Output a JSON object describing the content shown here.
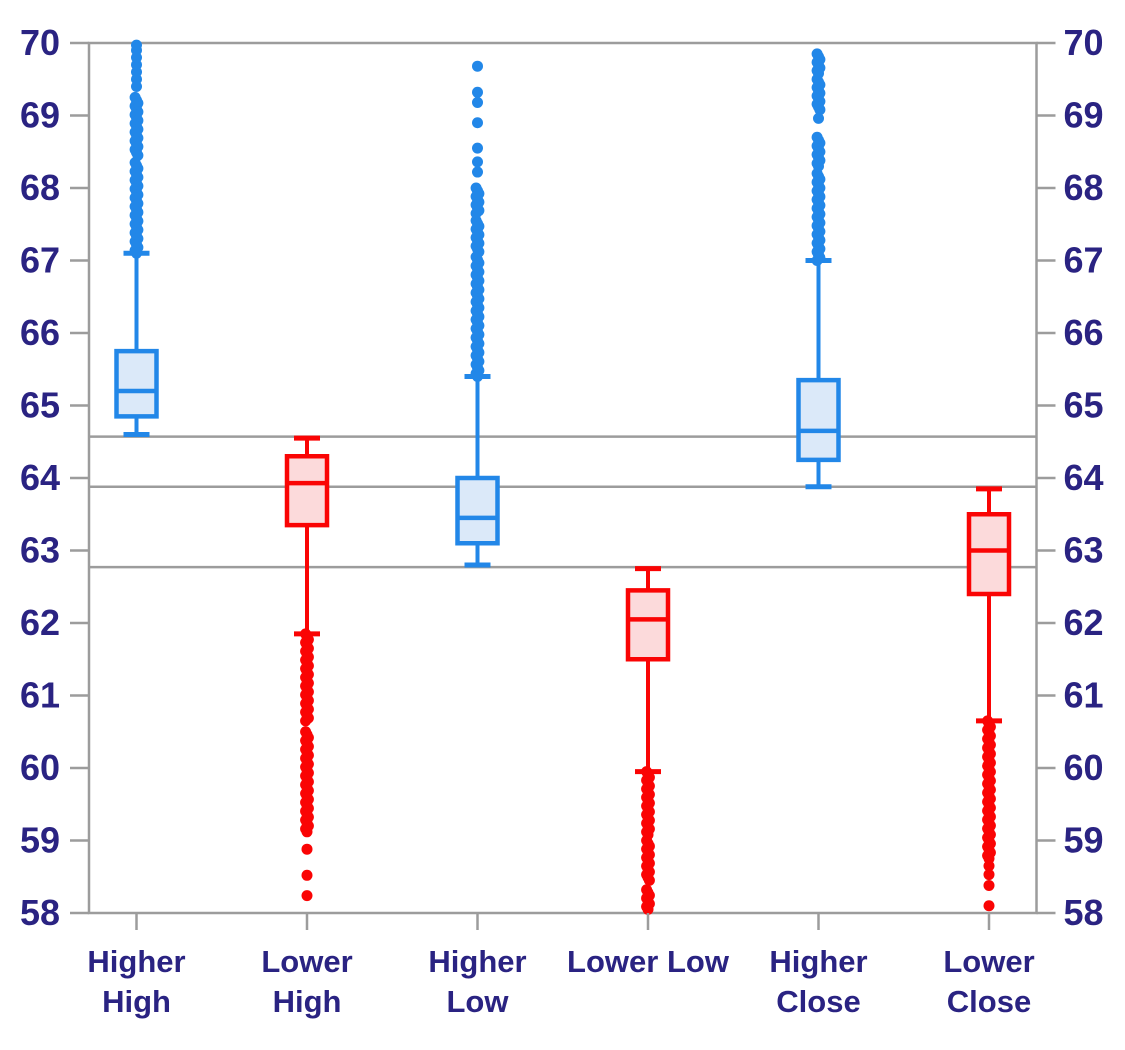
{
  "chart_data": {
    "type": "boxplot",
    "title": "",
    "xlabel": "",
    "ylabel": "",
    "y_axis": {
      "min": 58,
      "max": 70,
      "tick_step": 1,
      "ticks": [
        70,
        69,
        68,
        67,
        66,
        65,
        64,
        63,
        62,
        61,
        60,
        59,
        58
      ],
      "sides": [
        "left",
        "right"
      ]
    },
    "reference_lines": [
      64.57,
      63.88,
      62.77
    ],
    "grid": "horizontal-reference-only",
    "legend": "none",
    "categories": [
      {
        "label_lines": [
          "Higher",
          "High"
        ]
      },
      {
        "label_lines": [
          "Lower",
          "High"
        ]
      },
      {
        "label_lines": [
          "Higher",
          "Low"
        ]
      },
      {
        "label_lines": [
          "Lower Low"
        ]
      },
      {
        "label_lines": [
          "Higher",
          "Close"
        ]
      },
      {
        "label_lines": [
          "Lower",
          "Close"
        ]
      }
    ],
    "boxes": [
      {
        "name": "Higher High",
        "series": "higher",
        "whisker_low": 64.6,
        "q1": 64.85,
        "median": 65.2,
        "q3": 65.75,
        "whisker_high": 67.1,
        "outlier_side": "high",
        "outlier_runs": [
          [
            67.1,
            68.35
          ],
          [
            68.45,
            69.25
          ]
        ],
        "outlier_points": [
          69.4,
          69.5,
          69.6,
          69.7,
          69.8,
          69.9,
          69.97
        ]
      },
      {
        "name": "Lower High",
        "series": "lower",
        "whisker_low": 61.85,
        "q1": 63.35,
        "median": 63.93,
        "q3": 64.3,
        "whisker_high": 64.55,
        "outlier_side": "low",
        "outlier_runs": [
          [
            60.65,
            61.85
          ],
          [
            59.12,
            60.5
          ]
        ],
        "outlier_points": [
          58.88,
          58.52,
          58.24
        ]
      },
      {
        "name": "Higher Low",
        "series": "higher",
        "whisker_low": 62.8,
        "q1": 63.1,
        "median": 63.45,
        "q3": 64.0,
        "whisker_high": 65.4,
        "outlier_side": "high",
        "outlier_runs": [
          [
            65.4,
            67.05
          ],
          [
            67.12,
            67.55
          ],
          [
            67.65,
            68.0
          ]
        ],
        "outlier_points": [
          68.22,
          68.36,
          68.55,
          68.9,
          69.18,
          69.32,
          69.68
        ]
      },
      {
        "name": "Lower Low",
        "series": "lower",
        "whisker_low": 59.95,
        "q1": 61.5,
        "median": 62.05,
        "q3": 62.45,
        "whisker_high": 62.75,
        "outlier_side": "low",
        "outlier_runs": [
          [
            59.08,
            59.95
          ],
          [
            58.45,
            59.0
          ],
          [
            58.05,
            58.32
          ]
        ],
        "outlier_points": []
      },
      {
        "name": "Higher Close",
        "series": "higher",
        "whisker_low": 63.88,
        "q1": 64.25,
        "median": 64.65,
        "q3": 65.35,
        "whisker_high": 67.0,
        "outlier_side": "high",
        "outlier_runs": [
          [
            67.0,
            68.2
          ],
          [
            68.3,
            68.7
          ],
          [
            69.08,
            69.5
          ],
          [
            69.58,
            69.85
          ]
        ],
        "outlier_points": [
          68.96
        ]
      },
      {
        "name": "Lower Close",
        "series": "lower",
        "whisker_low": 60.65,
        "q1": 62.4,
        "median": 63.0,
        "q3": 63.5,
        "whisker_high": 63.85,
        "outlier_side": "low",
        "outlier_runs": [
          [
            58.75,
            60.65
          ]
        ],
        "outlier_points": [
          58.65,
          58.53,
          58.38,
          58.1
        ]
      }
    ],
    "colors": {
      "higher_stroke": "#2287e8",
      "higher_fill": "#dbe9f9",
      "lower_stroke": "#fa0404",
      "lower_fill": "#fcdadb",
      "grid": "#9c9c9c",
      "axis": "#9c9c9c",
      "tick_label": "#2a2382",
      "category_label": "#2a2382",
      "background": "#ffffff"
    }
  }
}
